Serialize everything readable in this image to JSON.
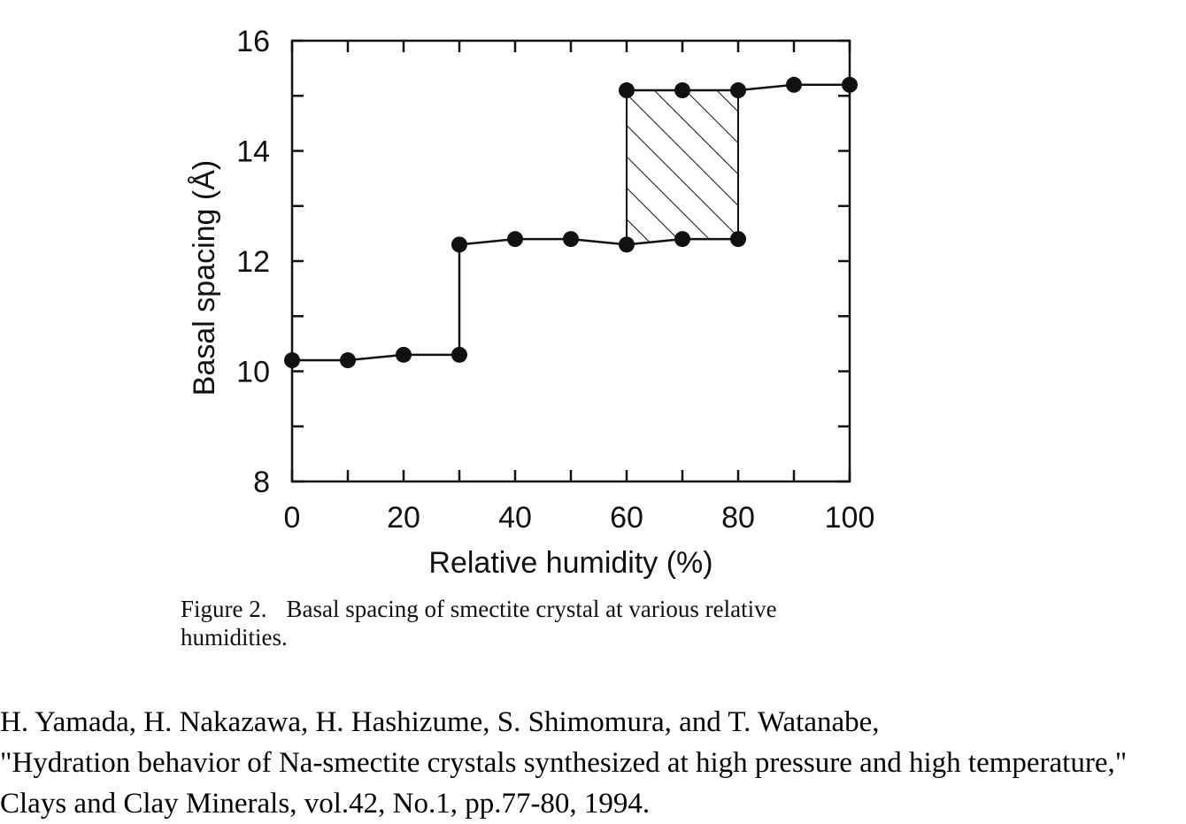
{
  "chart_data": {
    "type": "line",
    "xlabel": "Relative humidity (%)",
    "ylabel": "Basal spacing (Å)",
    "xlim": [
      0,
      100
    ],
    "ylim": [
      8,
      16
    ],
    "x_ticks": [
      0,
      20,
      40,
      60,
      80,
      100
    ],
    "y_ticks": [
      8,
      10,
      12,
      14,
      16
    ],
    "x_minor_ticks": [
      10,
      30,
      50,
      70,
      90
    ],
    "y_minor_ticks": [
      9,
      11,
      13,
      15
    ],
    "grid": false,
    "series": [
      {
        "points": [
          {
            "x": 0,
            "y": 10.2
          },
          {
            "x": 10,
            "y": 10.2
          },
          {
            "x": 20,
            "y": 10.3
          },
          {
            "x": 30,
            "y": 10.3
          },
          {
            "x": 30,
            "y": 12.3
          },
          {
            "x": 40,
            "y": 12.4
          },
          {
            "x": 50,
            "y": 12.4
          },
          {
            "x": 60,
            "y": 12.3
          },
          {
            "x": 70,
            "y": 12.4
          },
          {
            "x": 80,
            "y": 12.4
          }
        ]
      },
      {
        "points": [
          {
            "x": 60,
            "y": 15.1
          },
          {
            "x": 70,
            "y": 15.1
          },
          {
            "x": 80,
            "y": 15.1
          },
          {
            "x": 90,
            "y": 15.2
          },
          {
            "x": 100,
            "y": 15.2
          }
        ]
      }
    ],
    "hatched_region": {
      "x_range": [
        60,
        80
      ],
      "lower_edge": [
        {
          "x": 60,
          "y": 12.3
        },
        {
          "x": 70,
          "y": 12.4
        },
        {
          "x": 80,
          "y": 12.4
        }
      ],
      "upper_edge": [
        {
          "x": 60,
          "y": 15.1
        },
        {
          "x": 70,
          "y": 15.1
        },
        {
          "x": 80,
          "y": 15.1
        }
      ]
    }
  },
  "caption": {
    "figure_number": "Figure 2.",
    "text": "Basal spacing of smectite crystal at various relative humidities."
  },
  "citation": {
    "line1": "H. Yamada, H. Nakazawa, H. Hashizume, S. Shimomura, and T. Watanabe,",
    "line2": "\"Hydration behavior of Na-smectite crystals synthesized at high pressure and high temperature,\"",
    "line3": "Clays and Clay Minerals, vol.42, No.1, pp.77-80, 1994."
  }
}
